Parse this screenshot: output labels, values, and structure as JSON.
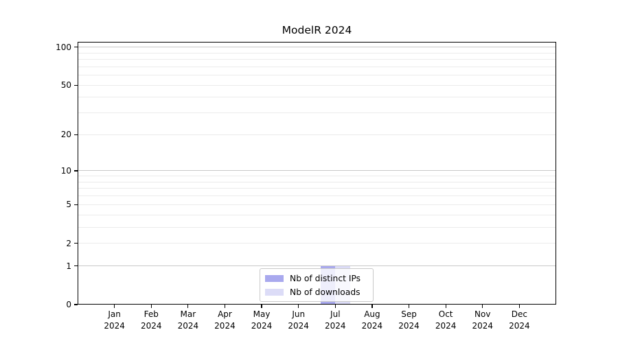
{
  "title": "ModelR 2024",
  "chart_data": {
    "type": "bar",
    "title": "ModelR 2024",
    "categories": [
      "Jan",
      "Feb",
      "Mar",
      "Apr",
      "May",
      "Jun",
      "Jul",
      "Aug",
      "Sep",
      "Oct",
      "Nov",
      "Dec"
    ],
    "category_year": "2024",
    "series": [
      {
        "name": "Nb of distinct IPs",
        "color": "#a9a9ee",
        "values": [
          0,
          0,
          0,
          0,
          0,
          0,
          1,
          0,
          0,
          0,
          0,
          0
        ]
      },
      {
        "name": "Nb of downloads",
        "color": "#dcdcf7",
        "values": [
          0,
          0,
          0,
          0,
          0,
          0,
          1,
          0,
          0,
          0,
          0,
          0
        ]
      }
    ],
    "yscale": "log1p",
    "ylim": [
      0,
      110
    ],
    "yticks": [
      {
        "value": 0,
        "label": "0"
      },
      {
        "value": 1,
        "label": "1"
      },
      {
        "value": 2,
        "label": "2"
      },
      {
        "value": 5,
        "label": "5"
      },
      {
        "value": 10,
        "label": "10"
      },
      {
        "value": 20,
        "label": "20"
      },
      {
        "value": 50,
        "label": "50"
      },
      {
        "value": 100,
        "label": "100"
      }
    ],
    "grid_major_values": [
      1,
      10,
      100
    ],
    "grid_minor_values": [
      2,
      3,
      4,
      5,
      6,
      7,
      8,
      9,
      20,
      30,
      40,
      50,
      60,
      70,
      80,
      90
    ],
    "grid_on": true,
    "legend_position": "lower center",
    "colors": {
      "grid_major": "#c8c8c8",
      "grid_minor": "#ebebeb",
      "spine": "#000000",
      "background": "#ffffff"
    }
  }
}
